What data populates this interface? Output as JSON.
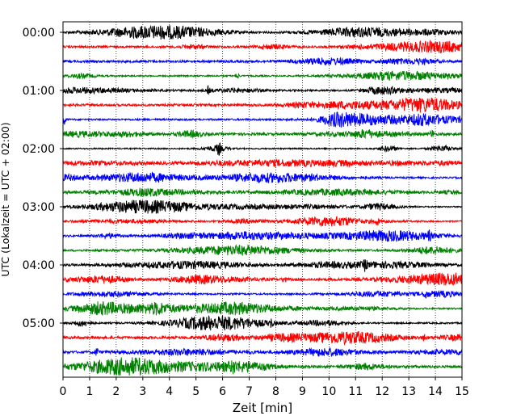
{
  "chart_data": {
    "type": "line",
    "xlabel": "Zeit  [min]",
    "ylabel": "UTC (Lokalzeit = UTC + 02:00)",
    "xlim": [
      0,
      15
    ],
    "x_ticks": [
      "0",
      "1",
      "2",
      "3",
      "4",
      "5",
      "6",
      "7",
      "8",
      "9",
      "10",
      "11",
      "12",
      "13",
      "14",
      "15"
    ],
    "y_ticks": [
      "00:00",
      "01:00",
      "02:00",
      "03:00",
      "04:00",
      "05:00"
    ],
    "grid": "vertical dotted",
    "trace_colors": [
      "#000000",
      "#ff0000",
      "#0000ff",
      "#008000"
    ],
    "traces_per_hour": 4,
    "trace_count": 24,
    "trace_interval_min": 15
  }
}
